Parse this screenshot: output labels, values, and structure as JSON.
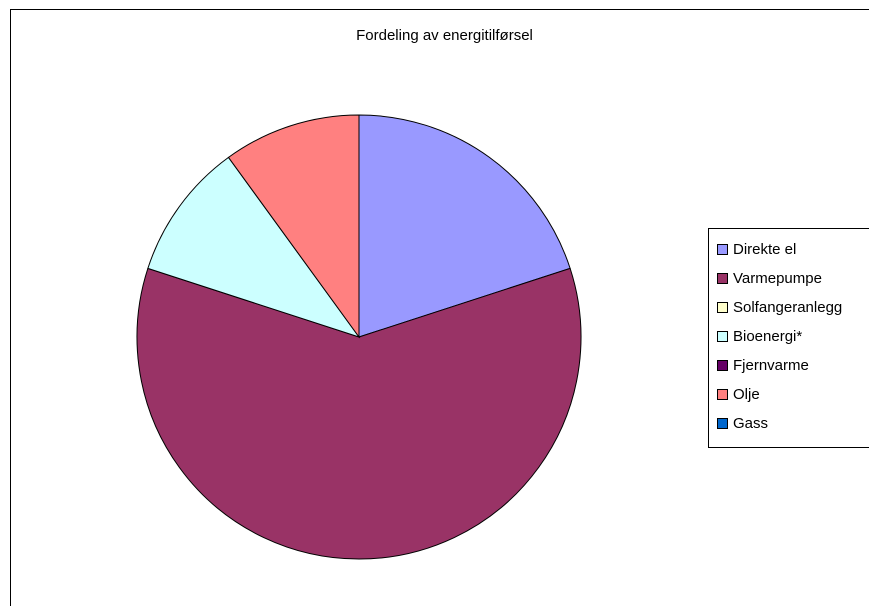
{
  "chart_data": {
    "type": "pie",
    "title": "Fordeling av energitilførsel",
    "start_angle_deg": 0,
    "direction": "clockwise",
    "legend_position": "right",
    "slices": [
      {
        "label": "Direkte el",
        "value": 20,
        "color": "#9999FF"
      },
      {
        "label": "Varmepumpe",
        "value": 60,
        "color": "#993366"
      },
      {
        "label": "Solfangeranlegg",
        "value": 0,
        "color": "#FFFFCC"
      },
      {
        "label": "Bioenergi*",
        "value": 10,
        "color": "#CCFFFF"
      },
      {
        "label": "Fjernvarme",
        "value": 0,
        "color": "#660066"
      },
      {
        "label": "Olje",
        "value": 10,
        "color": "#FF8080"
      },
      {
        "label": "Gass",
        "value": 0,
        "color": "#0066CC"
      }
    ]
  }
}
